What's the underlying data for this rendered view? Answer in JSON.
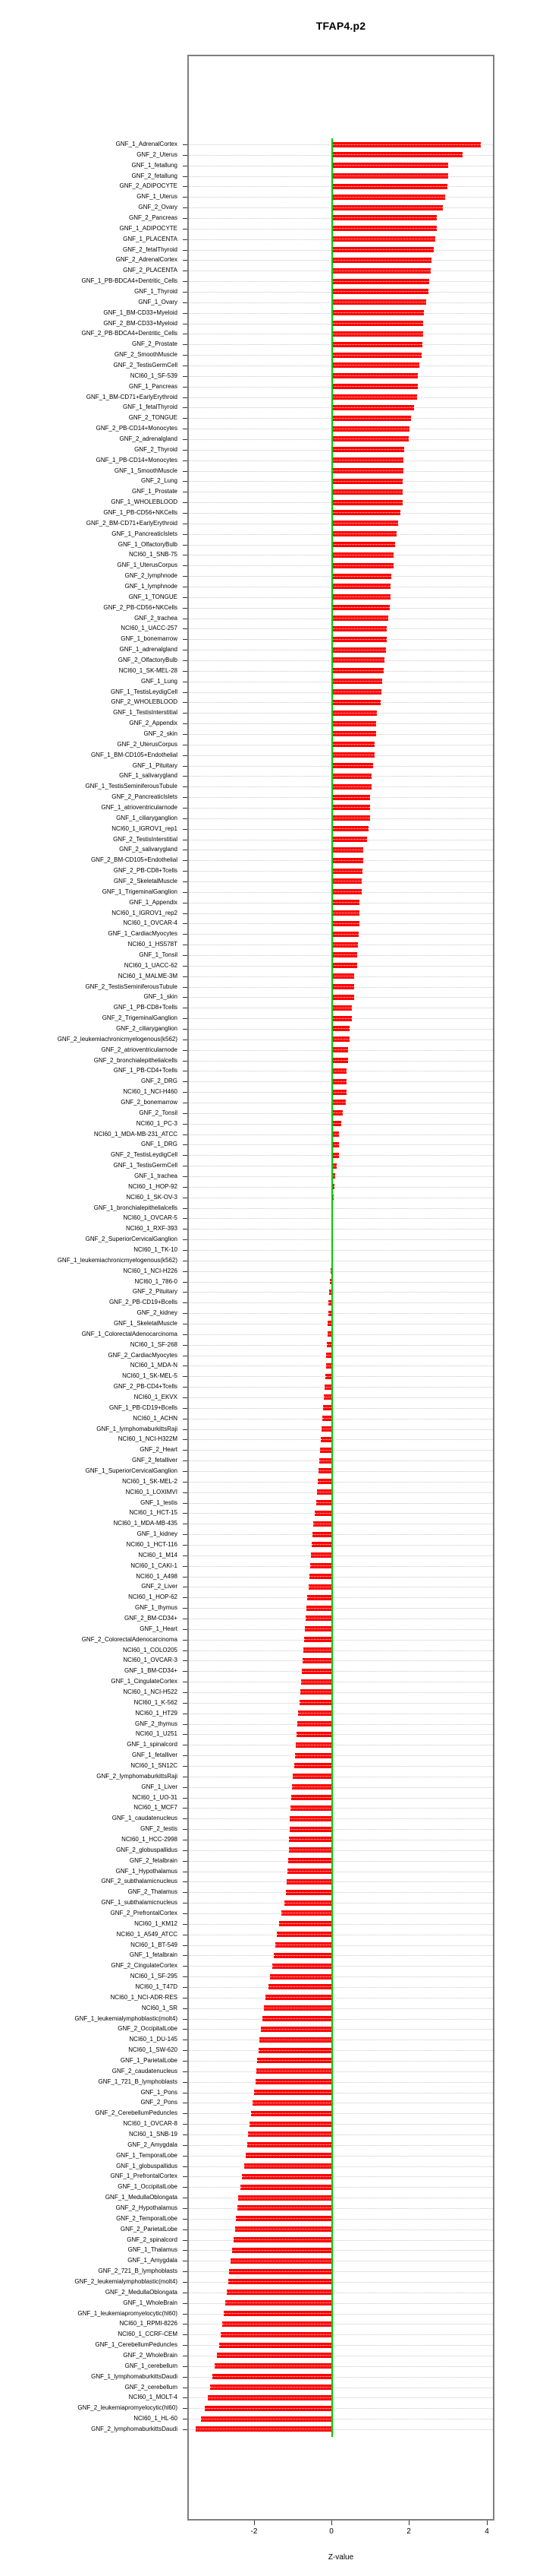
{
  "chart_data": {
    "type": "bar",
    "orientation": "horizontal",
    "title": "TFAP4.p2",
    "xlabel": "Z-value",
    "x_ticks": [
      -2,
      0,
      2,
      4
    ],
    "xlim": [
      -3.7,
      4.2
    ],
    "grid": "dotted-row-leaders",
    "bar_color": "#ff0000",
    "zero_line_color": "#00cc00",
    "box_color": "#7f7f7f",
    "categories": [
      "GNF_1_AdrenalCortex",
      "GNF_2_Uterus",
      "GNF_1_fetallung",
      "GNF_2_fetallung",
      "GNF_2_ADIPOCYTE",
      "GNF_1_Uterus",
      "GNF_2_Ovary",
      "GNF_2_Pancreas",
      "GNF_1_ADIPOCYTE",
      "GNF_1_PLACENTA",
      "GNF_2_fetalThyroid",
      "GNF_2_AdrenalCortex",
      "GNF_2_PLACENTA",
      "GNF_1_PB-BDCA4+Dentritic_Cells",
      "GNF_1_Thyroid",
      "GNF_1_Ovary",
      "GNF_1_BM-CD33+Myeloid",
      "GNF_2_BM-CD33+Myeloid",
      "GNF_2_PB-BDCA4+Dentritic_Cells",
      "GNF_2_Prostate",
      "GNF_2_SmoothMuscle",
      "GNF_2_TestisGermCell",
      "NCI60_1_SF-539",
      "GNF_1_Pancreas",
      "GNF_1_BM-CD71+EarlyErythroid",
      "GNF_1_fetalThyroid",
      "GNF_2_TONGUE",
      "GNF_2_PB-CD14+Monocytes",
      "GNF_2_adrenalgland",
      "GNF_2_Thyroid",
      "GNF_1_PB-CD14+Monocytes",
      "GNF_1_SmoothMuscle",
      "GNF_2_Lung",
      "GNF_1_Prostate",
      "GNF_1_WHOLEBLOOD",
      "GNF_1_PB-CD56+NKCells",
      "GNF_2_BM-CD71+EarlyErythroid",
      "GNF_1_PancreaticIslets",
      "GNF_1_OlfactoryBulb",
      "NCI60_1_SNB-75",
      "GNF_1_UterusCorpus",
      "GNF_2_lymphnode",
      "GNF_1_lymphnode",
      "GNF_1_TONGUE",
      "GNF_2_PB-CD56+NKCells",
      "GNF_2_trachea",
      "NCI60_1_UACC-257",
      "GNF_1_bonemarrow",
      "GNF_1_adrenalgland",
      "GNF_2_OlfactoryBulb",
      "NCI60_1_SK-MEL-28",
      "GNF_1_Lung",
      "GNF_1_TestisLeydigCell",
      "GNF_2_WHOLEBLOOD",
      "GNF_1_TestisInterstitial",
      "GNF_2_Appendix",
      "GNF_2_skin",
      "GNF_2_UterusCorpus",
      "GNF_1_BM-CD105+Endothelial",
      "GNF_1_Pituitary",
      "GNF_1_salivarygland",
      "GNF_1_TestisSeminiferousTubule",
      "GNF_2_PancreaticIslets",
      "GNF_1_atrioventricularnode",
      "GNF_1_ciliaryganglion",
      "NCI60_1_IGROV1_rep1",
      "GNF_2_TestisInterstitial",
      "GNF_2_salivarygland",
      "GNF_2_BM-CD105+Endothelial",
      "GNF_2_PB-CD8+Tcells",
      "GNF_2_SkeletalMuscle",
      "GNF_1_TrigeminalGanglion",
      "GNF_1_Appendix",
      "NCI60_1_IGROV1_rep2",
      "NCI60_1_OVCAR-4",
      "GNF_1_CardiacMyocytes",
      "NCI60_1_HS578T",
      "GNF_1_Tonsil",
      "NCI60_1_UACC-62",
      "NCI60_1_MALME-3M",
      "GNF_2_TestisSeminiferousTubule",
      "GNF_1_skin",
      "GNF_1_PB-CD8+Tcells",
      "GNF_2_TrigeminalGanglion",
      "GNF_2_ciliaryganglion",
      "GNF_2_leukemiachronicmyelogenous(k562)",
      "GNF_2_atrioventricularnode",
      "GNF_2_bronchialepithelialcells",
      "GNF_1_PB-CD4+Tcells",
      "GNF_2_DRG",
      "NCI60_1_NCI-H460",
      "GNF_2_bonemarrow",
      "GNF_2_Tonsil",
      "NCI60_1_PC-3",
      "NCI60_1_MDA-MB-231_ATCC",
      "GNF_1_DRG",
      "GNF_2_TestisLeydigCell",
      "GNF_1_TestisGermCell",
      "GNF_1_trachea",
      "NCI60_1_HOP-92",
      "NCI60_1_SK-OV-3",
      "GNF_1_bronchialepithelialcells",
      "NCI60_1_OVCAR-5",
      "NCI60_1_RXF-393",
      "GNF_2_SuperiorCervicalGanglion",
      "NCI60_1_TK-10",
      "GNF_1_leukemiachronicmyelogenous(k562)",
      "NCI60_1_NCI-H226",
      "NCI60_1_786-0",
      "GNF_2_Pituitary",
      "GNF_2_PB-CD19+Bcells",
      "GNF_2_kidney",
      "GNF_1_SkeletalMuscle",
      "GNF_1_ColorectalAdenocarcinoma",
      "NCI60_1_SF-268",
      "GNF_2_CardiacMyocytes",
      "NCI60_1_MDA-N",
      "NCI60_1_SK-MEL-5",
      "GNF_2_PB-CD4+Tcells",
      "NCI60_1_EKVX",
      "GNF_1_PB-CD19+Bcells",
      "NCI60_1_ACHN",
      "GNF_1_lymphomaburkittsRaji",
      "NCI60_1_NCI-H322M",
      "GNF_2_Heart",
      "GNF_2_fetalliver",
      "GNF_1_SuperiorCervicalGanglion",
      "NCI60_1_SK-MEL-2",
      "NCI60_1_LOXIMVI",
      "GNF_1_testis",
      "NCI60_1_HCT-15",
      "NCI60_1_MDA-MB-435",
      "GNF_1_kidney",
      "NCI60_1_HCT-116",
      "NCI60_1_M14",
      "NCI60_1_CAKI-1",
      "NCI60_1_A498",
      "GNF_2_Liver",
      "NCI60_1_HOP-62",
      "GNF_1_thymus",
      "GNF_2_BM-CD34+",
      "GNF_1_Heart",
      "GNF_2_ColorectalAdenocarcinoma",
      "NCI60_1_COLO205",
      "NCI60_1_OVCAR-3",
      "GNF_1_BM-CD34+",
      "GNF_1_CingulateCortex",
      "NCI60_1_NCI-H522",
      "NCI60_1_K-562",
      "NCI60_1_HT29",
      "GNF_2_thymus",
      "NCI60_1_U251",
      "GNF_1_spinalcord",
      "GNF_1_fetalliver",
      "NCI60_1_SN12C",
      "GNF_2_lymphomaburkittsRaji",
      "GNF_1_Liver",
      "NCI60_1_UO-31",
      "NCI60_1_MCF7",
      "GNF_1_caudatenucleus",
      "GNF_2_testis",
      "NCI60_1_HCC-2998",
      "GNF_2_globuspallidus",
      "GNF_2_fetalbrain",
      "GNF_1_Hypothalamus",
      "GNF_2_subthalamicnucleus",
      "GNF_2_Thalamus",
      "GNF_1_subthalamicnucleus",
      "GNF_2_PrefrontalCortex",
      "NCI60_1_KM12",
      "NCI60_1_A549_ATCC",
      "NCI60_1_BT-549",
      "GNF_1_fetalbrain",
      "GNF_2_CingulateCortex",
      "NCI60_1_SF-295",
      "NCI60_1_T47D",
      "NCI60_1_NCI-ADR-RES",
      "NCI60_1_SR",
      "GNF_1_leukemialymphoblastic(molt4)",
      "GNF_2_OccipitalLobe",
      "NCI60_1_DU-145",
      "NCI60_1_SW-620",
      "GNF_1_ParietalLobe",
      "GNF_2_caudatenucleus",
      "GNF_1_721_B_lymphoblasts",
      "GNF_1_Pons",
      "GNF_2_Pons",
      "GNF_2_CerebellumPeduncles",
      "NCI60_1_OVCAR-8",
      "NCI60_1_SNB-19",
      "GNF_2_Amygdala",
      "GNF_1_TemporalLobe",
      "GNF_1_globuspallidus",
      "GNF_1_PrefrontalCortex",
      "GNF_1_OccipitalLobe",
      "GNF_1_MedullaOblongata",
      "GNF_2_Hypothalamus",
      "GNF_2_TemporalLobe",
      "GNF_2_ParietalLobe",
      "GNF_2_spinalcord",
      "GNF_1_Thalamus",
      "GNF_1_Amygdala",
      "GNF_2_721_B_lymphoblasts",
      "GNF_2_leukemialymphoblastic(molt4)",
      "GNF_2_MedullaOblongata",
      "GNF_1_WholeBrain",
      "GNF_1_leukemiapromyelocytic(hl60)",
      "NCI60_1_RPMI-8226",
      "NCI60_1_CCRF-CEM",
      "GNF_1_CerebellumPeduncles",
      "GNF_2_WholeBrain",
      "GNF_1_cerebellum",
      "GNF_1_lymphomaburkittsDaudi",
      "GNF_2_cerebellum",
      "NCI60_1_MOLT-4",
      "GNF_2_leukemiapromyelocytic(hl60)",
      "NCI60_1_HL-60",
      "GNF_2_lymphomaburkittsDaudi"
    ],
    "values": [
      3.85,
      3.38,
      3.01,
      3.0,
      2.98,
      2.92,
      2.87,
      2.72,
      2.71,
      2.68,
      2.64,
      2.57,
      2.55,
      2.52,
      2.5,
      2.45,
      2.39,
      2.37,
      2.36,
      2.35,
      2.33,
      2.26,
      2.23,
      2.22,
      2.2,
      2.12,
      2.05,
      2.01,
      2.0,
      1.88,
      1.86,
      1.85,
      1.84,
      1.84,
      1.83,
      1.78,
      1.71,
      1.68,
      1.64,
      1.61,
      1.6,
      1.55,
      1.53,
      1.52,
      1.5,
      1.47,
      1.43,
      1.42,
      1.4,
      1.37,
      1.34,
      1.3,
      1.28,
      1.27,
      1.17,
      1.16,
      1.15,
      1.12,
      1.11,
      1.08,
      1.04,
      1.03,
      1.0,
      0.99,
      0.99,
      0.95,
      0.91,
      0.82,
      0.82,
      0.8,
      0.79,
      0.78,
      0.73,
      0.73,
      0.73,
      0.71,
      0.69,
      0.67,
      0.66,
      0.59,
      0.59,
      0.58,
      0.53,
      0.52,
      0.47,
      0.47,
      0.43,
      0.42,
      0.39,
      0.39,
      0.39,
      0.38,
      0.3,
      0.25,
      0.2,
      0.2,
      0.19,
      0.14,
      0.09,
      0.07,
      0.05,
      0.04,
      0.03,
      0.02,
      0.02,
      0.01,
      0.0,
      -0.01,
      -0.03,
      -0.05,
      -0.07,
      -0.08,
      -0.1,
      -0.1,
      -0.12,
      -0.13,
      -0.14,
      -0.16,
      -0.18,
      -0.19,
      -0.21,
      -0.23,
      -0.25,
      -0.27,
      -0.29,
      -0.31,
      -0.33,
      -0.36,
      -0.38,
      -0.4,
      -0.43,
      -0.46,
      -0.48,
      -0.5,
      -0.52,
      -0.55,
      -0.57,
      -0.59,
      -0.62,
      -0.64,
      -0.66,
      -0.68,
      -0.7,
      -0.73,
      -0.75,
      -0.77,
      -0.79,
      -0.81,
      -0.83,
      -0.86,
      -0.88,
      -0.9,
      -0.92,
      -0.94,
      -0.96,
      -0.99,
      -1.01,
      -1.03,
      -1.05,
      -1.07,
      -1.08,
      -1.09,
      -1.1,
      -1.11,
      -1.13,
      -1.15,
      -1.18,
      -1.22,
      -1.28,
      -1.35,
      -1.4,
      -1.44,
      -1.48,
      -1.53,
      -1.58,
      -1.63,
      -1.7,
      -1.74,
      -1.78,
      -1.81,
      -1.85,
      -1.88,
      -1.91,
      -1.94,
      -1.96,
      -1.99,
      -2.03,
      -2.07,
      -2.11,
      -2.14,
      -2.17,
      -2.2,
      -2.24,
      -2.3,
      -2.35,
      -2.4,
      -2.43,
      -2.46,
      -2.49,
      -2.52,
      -2.55,
      -2.59,
      -2.63,
      -2.66,
      -2.7,
      -2.74,
      -2.78,
      -2.82,
      -2.86,
      -2.9,
      -2.95,
      -3.0,
      -3.06,
      -3.12,
      -3.19,
      -3.26,
      -3.35,
      -3.49
    ]
  }
}
